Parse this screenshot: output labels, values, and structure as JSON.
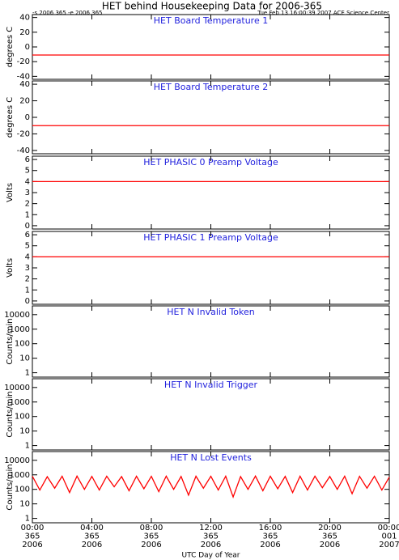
{
  "title": "HET behind Housekeeping Data for 2006-365",
  "run_info": "-s 2006 365  -e 2006 365",
  "timestamp": "Tue Feb 13 16:00:39 2007 ACE Science Center",
  "chart_data": [
    {
      "type": "line",
      "title": "HET Board Temperature 1",
      "ylabel": "degrees C",
      "ylim": [
        -44,
        44
      ],
      "yticks": [
        -40,
        -20,
        0,
        20,
        40
      ],
      "log": false,
      "xlim": [
        0,
        24
      ],
      "xticks": [
        0,
        4,
        8,
        12,
        16,
        20,
        24
      ],
      "x": [
        0,
        24
      ],
      "series": [
        {
          "color": "#ff0000",
          "values": [
            -11,
            -11
          ]
        }
      ]
    },
    {
      "type": "line",
      "title": "HET Board Temperature 2",
      "ylabel": "degrees C",
      "ylim": [
        -44,
        44
      ],
      "yticks": [
        -40,
        -20,
        0,
        20,
        40
      ],
      "log": false,
      "xlim": [
        0,
        24
      ],
      "xticks": [
        0,
        4,
        8,
        12,
        16,
        20,
        24
      ],
      "x": [
        0,
        24
      ],
      "series": [
        {
          "color": "#ff0000",
          "values": [
            -10,
            -10
          ]
        }
      ]
    },
    {
      "type": "line",
      "title": "HET PHASIC 0 Preamp Voltage",
      "ylabel": "Volts",
      "ylim": [
        -0.3,
        6.3
      ],
      "yticks": [
        0,
        1,
        2,
        3,
        4,
        5,
        6
      ],
      "log": false,
      "xlim": [
        0,
        24
      ],
      "xticks": [
        0,
        4,
        8,
        12,
        16,
        20,
        24
      ],
      "x": [
        0,
        24
      ],
      "series": [
        {
          "color": "#ff0000",
          "values": [
            4,
            4
          ]
        }
      ]
    },
    {
      "type": "line",
      "title": "HET PHASIC 1 Preamp Voltage",
      "ylabel": "Volts",
      "ylim": [
        -0.3,
        6.3
      ],
      "yticks": [
        0,
        1,
        2,
        3,
        4,
        5,
        6
      ],
      "log": false,
      "xlim": [
        0,
        24
      ],
      "xticks": [
        0,
        4,
        8,
        12,
        16,
        20,
        24
      ],
      "x": [
        0,
        24
      ],
      "series": [
        {
          "color": "#ff0000",
          "values": [
            4,
            4
          ]
        }
      ]
    },
    {
      "type": "line",
      "title": "HET N Invalid Token",
      "ylabel": "Counts/min",
      "ylim": [
        0.5,
        40000
      ],
      "yticks": [
        1,
        10,
        100,
        1000,
        10000
      ],
      "log": true,
      "xlim": [
        0,
        24
      ],
      "xticks": [
        0,
        4,
        8,
        12,
        16,
        20,
        24
      ],
      "x": [],
      "series": []
    },
    {
      "type": "line",
      "title": "HET N Invalid Trigger",
      "ylabel": "Counts/min",
      "ylim": [
        0.5,
        40000
      ],
      "yticks": [
        1,
        10,
        100,
        1000,
        10000
      ],
      "log": true,
      "xlim": [
        0,
        24
      ],
      "xticks": [
        0,
        4,
        8,
        12,
        16,
        20,
        24
      ],
      "x": [],
      "series": []
    },
    {
      "type": "line",
      "title": "HET N Lost Events",
      "ylabel": "Counts/min",
      "ylim": [
        0.5,
        40000
      ],
      "yticks": [
        1,
        10,
        100,
        1000,
        10000
      ],
      "log": true,
      "xlim": [
        0,
        24
      ],
      "xlabel": "UTC Day of Year",
      "xticks": [
        {
          "value": 0,
          "label": [
            "00:00",
            "365",
            "2006"
          ]
        },
        {
          "value": 4,
          "label": [
            "04:00",
            "365",
            "2006"
          ]
        },
        {
          "value": 8,
          "label": [
            "08:00",
            "365",
            "2006"
          ]
        },
        {
          "value": 12,
          "label": [
            "12:00",
            "365",
            "2006"
          ]
        },
        {
          "value": 16,
          "label": [
            "16:00",
            "365",
            "2006"
          ]
        },
        {
          "value": 20,
          "label": [
            "20:00",
            "365",
            "2006"
          ]
        },
        {
          "value": 24,
          "label": [
            "00:00",
            "001",
            "2007"
          ]
        }
      ],
      "x": [
        0,
        0.5,
        1,
        1.5,
        2,
        2.5,
        3,
        3.5,
        4,
        4.5,
        5,
        5.5,
        6,
        6.5,
        7,
        7.5,
        8,
        8.5,
        9,
        9.5,
        10,
        10.5,
        11,
        11.5,
        12,
        12.5,
        13,
        13.5,
        14,
        14.5,
        15,
        15.5,
        16,
        16.5,
        17,
        17.5,
        18,
        18.5,
        19,
        19.5,
        20,
        20.5,
        21,
        21.5,
        22,
        22.5,
        23,
        23.5,
        24
      ],
      "series": [
        {
          "color": "#ff0000",
          "values": [
            800,
            90,
            750,
            120,
            800,
            60,
            820,
            100,
            780,
            90,
            800,
            150,
            760,
            80,
            800,
            110,
            790,
            70,
            810,
            100,
            770,
            40,
            800,
            120,
            790,
            90,
            800,
            30,
            760,
            100,
            820,
            80,
            800,
            110,
            780,
            60,
            800,
            90,
            810,
            130,
            770,
            100,
            800,
            50,
            790,
            120,
            800,
            90,
            700
          ]
        }
      ]
    }
  ]
}
